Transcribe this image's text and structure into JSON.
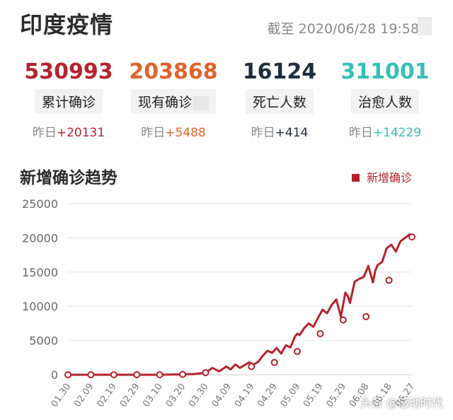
{
  "header": {
    "title": "印度疫情",
    "timestamp": "截至 2020/06/28 19:58"
  },
  "stats": [
    {
      "value": "530993",
      "label": "累计确诊",
      "delta_prefix": "昨日",
      "delta": "+20131",
      "color": "#b5222d",
      "delta_color": "#b5222d"
    },
    {
      "value": "203868",
      "label": "现有确诊",
      "delta_prefix": "昨日",
      "delta": "+5488",
      "color": "#e1622a",
      "delta_color": "#e1622a"
    },
    {
      "value": "16124",
      "label": "死亡人数",
      "delta_prefix": "昨日",
      "delta": "+414",
      "color": "#1f2d3d",
      "delta_color": "#1f2d3d"
    },
    {
      "value": "311001",
      "label": "治愈人数",
      "delta_prefix": "昨日",
      "delta": "+14229",
      "color": "#36bfb6",
      "delta_color": "#36bfb6"
    }
  ],
  "chart_section": {
    "title": "新增确诊趋势",
    "legend": "新增确诊"
  },
  "watermark": "头条 @感动时代",
  "chart_data": {
    "type": "line",
    "series_color": "#b5222d",
    "ylim": [
      0,
      25000
    ],
    "yticks": [
      0,
      5000,
      10000,
      15000,
      20000,
      25000
    ],
    "xticks": [
      "01.30",
      "02.09",
      "02.19",
      "02.29",
      "03.10",
      "03.20",
      "03.30",
      "04.09",
      "04.19",
      "04.29",
      "05.09",
      "05.19",
      "05.29",
      "06.08",
      "06.18",
      "06.27"
    ],
    "series": [
      {
        "x": [
          0,
          10,
          20,
          30,
          40,
          50,
          55,
          60,
          63,
          66,
          69,
          71,
          73,
          75,
          77,
          79,
          81,
          83,
          85,
          87,
          89,
          91,
          93,
          95,
          97,
          99,
          100,
          101,
          103,
          105,
          107,
          109,
          111,
          113,
          115,
          117,
          119,
          121,
          122,
          123,
          125,
          127,
          129,
          131,
          133,
          134,
          135,
          137,
          139,
          141,
          143,
          145,
          147,
          149,
          150
        ],
        "values": [
          0,
          0,
          0,
          0,
          0,
          50,
          100,
          300,
          1000,
          500,
          1200,
          800,
          1500,
          1000,
          1400,
          1800,
          1500,
          1900,
          2800,
          3500,
          3200,
          3900,
          3100,
          4300,
          4000,
          5600,
          6000,
          5800,
          6800,
          7500,
          7000,
          8300,
          9500,
          9000,
          10200,
          11000,
          8500,
          12000,
          11500,
          10500,
          13600,
          14000,
          14300,
          15900,
          13500,
          15200,
          16000,
          16500,
          18500,
          19000,
          18000,
          19500,
          20000,
          20500,
          20131
        ]
      }
    ],
    "markers": [
      {
        "x": 0,
        "value": 0
      },
      {
        "x": 10,
        "value": 0
      },
      {
        "x": 20,
        "value": 0
      },
      {
        "x": 30,
        "value": 0
      },
      {
        "x": 40,
        "value": 0
      },
      {
        "x": 50,
        "value": 50
      },
      {
        "x": 60,
        "value": 300
      },
      {
        "x": 80,
        "value": 1200
      },
      {
        "x": 90,
        "value": 1800
      },
      {
        "x": 100,
        "value": 3400
      },
      {
        "x": 110,
        "value": 6000
      },
      {
        "x": 120,
        "value": 8000
      },
      {
        "x": 130,
        "value": 8500
      },
      {
        "x": 140,
        "value": 13800
      },
      {
        "x": 150,
        "value": 20131
      }
    ]
  }
}
